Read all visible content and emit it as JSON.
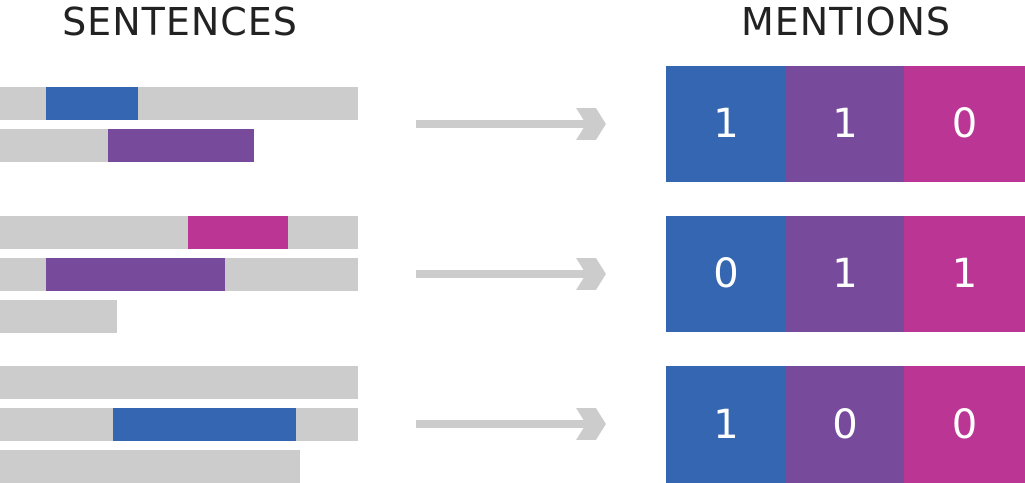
{
  "headings": {
    "sentences": "SENTENCES",
    "mentions": "MENTIONS"
  },
  "colors": {
    "blue": "#3466b2",
    "purple": "#774a9c",
    "magenta": "#bb3595",
    "gray": "#cccccc",
    "arrow": "#cccccc",
    "text": "#222222"
  },
  "rows": [
    {
      "mentions": [
        "1",
        "1",
        "0"
      ]
    },
    {
      "mentions": [
        "0",
        "1",
        "1"
      ]
    },
    {
      "mentions": [
        "1",
        "0",
        "0"
      ]
    }
  ]
}
